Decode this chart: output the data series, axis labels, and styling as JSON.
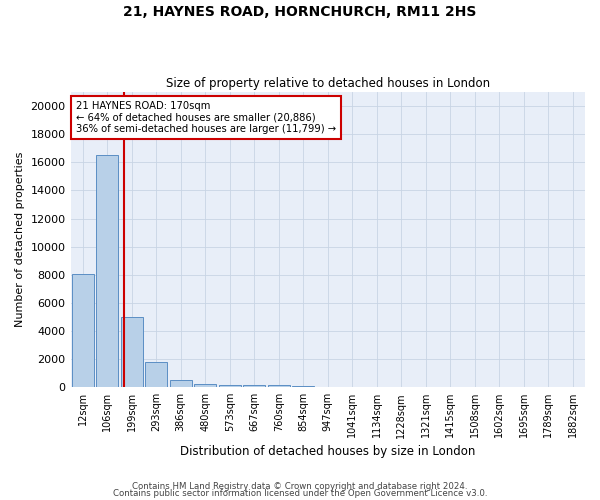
{
  "title1": "21, HAYNES ROAD, HORNCHURCH, RM11 2HS",
  "title2": "Size of property relative to detached houses in London",
  "xlabel": "Distribution of detached houses by size in London",
  "ylabel": "Number of detached properties",
  "categories": [
    "12sqm",
    "106sqm",
    "199sqm",
    "293sqm",
    "386sqm",
    "480sqm",
    "573sqm",
    "667sqm",
    "760sqm",
    "854sqm",
    "947sqm",
    "1041sqm",
    "1134sqm",
    "1228sqm",
    "1321sqm",
    "1415sqm",
    "1508sqm",
    "1602sqm",
    "1695sqm",
    "1789sqm",
    "1882sqm"
  ],
  "values": [
    8050,
    16500,
    5000,
    1800,
    500,
    260,
    190,
    155,
    190,
    55,
    0,
    0,
    0,
    0,
    0,
    0,
    0,
    0,
    0,
    0,
    0
  ],
  "bar_color": "#b8d0e8",
  "bar_edge_color": "#5b8ec4",
  "annotation_text": "21 HAYNES ROAD: 170sqm\n← 64% of detached houses are smaller (20,886)\n36% of semi-detached houses are larger (11,799) →",
  "annotation_box_color": "#ffffff",
  "annotation_box_edge_color": "#cc0000",
  "highlight_line_color": "#cc0000",
  "ylim": [
    0,
    21000
  ],
  "yticks": [
    0,
    2000,
    4000,
    6000,
    8000,
    10000,
    12000,
    14000,
    16000,
    18000,
    20000
  ],
  "footer1": "Contains HM Land Registry data © Crown copyright and database right 2024.",
  "footer2": "Contains public sector information licensed under the Open Government Licence v3.0.",
  "background_color": "#ffffff",
  "plot_bg_color": "#e8eef8",
  "grid_color": "#c8d4e4"
}
